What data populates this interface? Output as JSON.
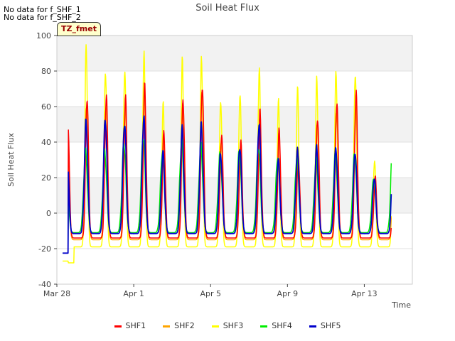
{
  "nodata_lines": [
    "No data for f_SHF_1",
    "No data for f_SHF_2"
  ],
  "tz_label": "TZ_fmet",
  "colors": {
    "SHF1": "#ff0000",
    "SHF2": "#ffa500",
    "SHF3": "#ffff00",
    "SHF4": "#00ee00",
    "SHF5": "#0000cc"
  },
  "chart_data": {
    "type": "line",
    "title": "Soil Heat Flux",
    "xlabel": "Time",
    "ylabel": "Soil Heat Flux",
    "ylim": [
      -40,
      100
    ],
    "yticks": [
      -40,
      -20,
      0,
      20,
      40,
      60,
      80,
      100
    ],
    "xlim_days": [
      0,
      18.5
    ],
    "x_ticks": [
      {
        "label": "Mar 28",
        "day": 0
      },
      {
        "label": "Apr 1",
        "day": 4
      },
      {
        "label": "Apr 5",
        "day": 8
      },
      {
        "label": "Apr 9",
        "day": 12
      },
      {
        "label": "Apr 13",
        "day": 16
      }
    ],
    "x_unit": "days since Mar 28 00:00",
    "series_start_day": 0.3,
    "series_end_day": 17.4,
    "daily_peaks": {
      "SHF1": [
        55,
        67,
        67,
        64,
        70,
        45,
        65,
        74,
        45,
        40,
        56,
        46,
        32,
        55,
        64,
        68,
        20,
        56
      ],
      "SHF2": [
        50,
        62,
        62,
        60,
        68,
        42,
        60,
        70,
        42,
        38,
        52,
        43,
        30,
        50,
        60,
        64,
        18,
        52
      ],
      "SHF3": [
        83,
        95,
        83,
        83,
        90,
        60,
        84,
        87,
        65,
        70,
        82,
        62,
        68,
        75,
        82,
        82,
        30,
        81
      ],
      "SHF4": [
        27,
        35,
        35,
        40,
        44,
        35,
        40,
        38,
        33,
        35,
        38,
        32,
        32,
        30,
        33,
        33,
        20,
        45
      ],
      "SHF5": [
        44,
        52,
        54,
        52,
        55,
        34,
        47,
        50,
        34,
        38,
        51,
        30,
        35,
        37,
        37,
        35,
        20,
        43
      ]
    },
    "night_minimum": -12,
    "legend": [
      "SHF1",
      "SHF2",
      "SHF3",
      "SHF4",
      "SHF5"
    ]
  }
}
